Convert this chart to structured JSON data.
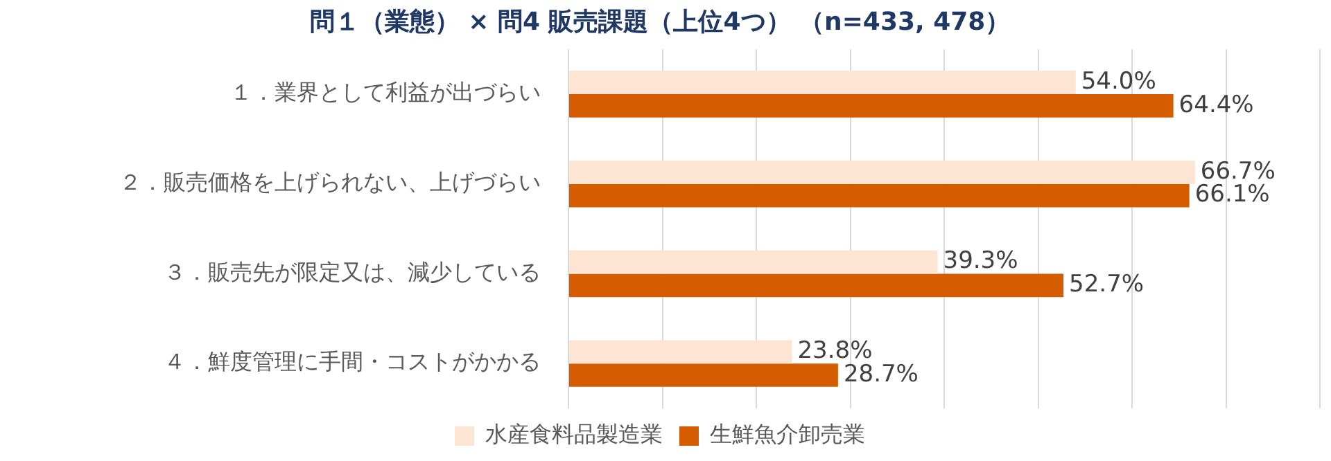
{
  "chart_data": {
    "type": "bar",
    "orientation": "horizontal",
    "title": "問１（業態） × 問4 販売課題（上位4つ） （n=433, 478）",
    "categories": [
      "１．業界として利益が出づらい",
      "２．販売価格を上げられない、上げづらい",
      "３．販売先が限定又は、減少している",
      "４．鮮度管理に手間・コストがかかる"
    ],
    "series": [
      {
        "name": "水産食料品製造業",
        "color": "#fde4d3",
        "values": [
          54.0,
          66.7,
          39.3,
          23.8
        ],
        "value_labels": [
          "54.0%",
          "66.7%",
          "39.3%",
          "23.8%"
        ]
      },
      {
        "name": "生鮮魚介卸売業",
        "color": "#d65c00",
        "values": [
          64.4,
          66.1,
          52.7,
          28.7
        ],
        "value_labels": [
          "64.4%",
          "66.1%",
          "52.7%",
          "28.7%"
        ]
      }
    ],
    "xlim": [
      0,
      80
    ],
    "xticks": [
      {
        "value": 0,
        "label": null
      },
      {
        "value": 10,
        "label": null
      },
      {
        "value": 20,
        "label": null
      },
      {
        "value": 30,
        "label": null
      },
      {
        "value": 40,
        "label": null
      },
      {
        "value": 50,
        "label": null
      },
      {
        "value": 60,
        "label": null
      },
      {
        "value": 70,
        "label": null
      },
      {
        "value": 80,
        "label": null
      }
    ],
    "grid": "x",
    "tick_labels": "y",
    "legend": "bottom"
  }
}
